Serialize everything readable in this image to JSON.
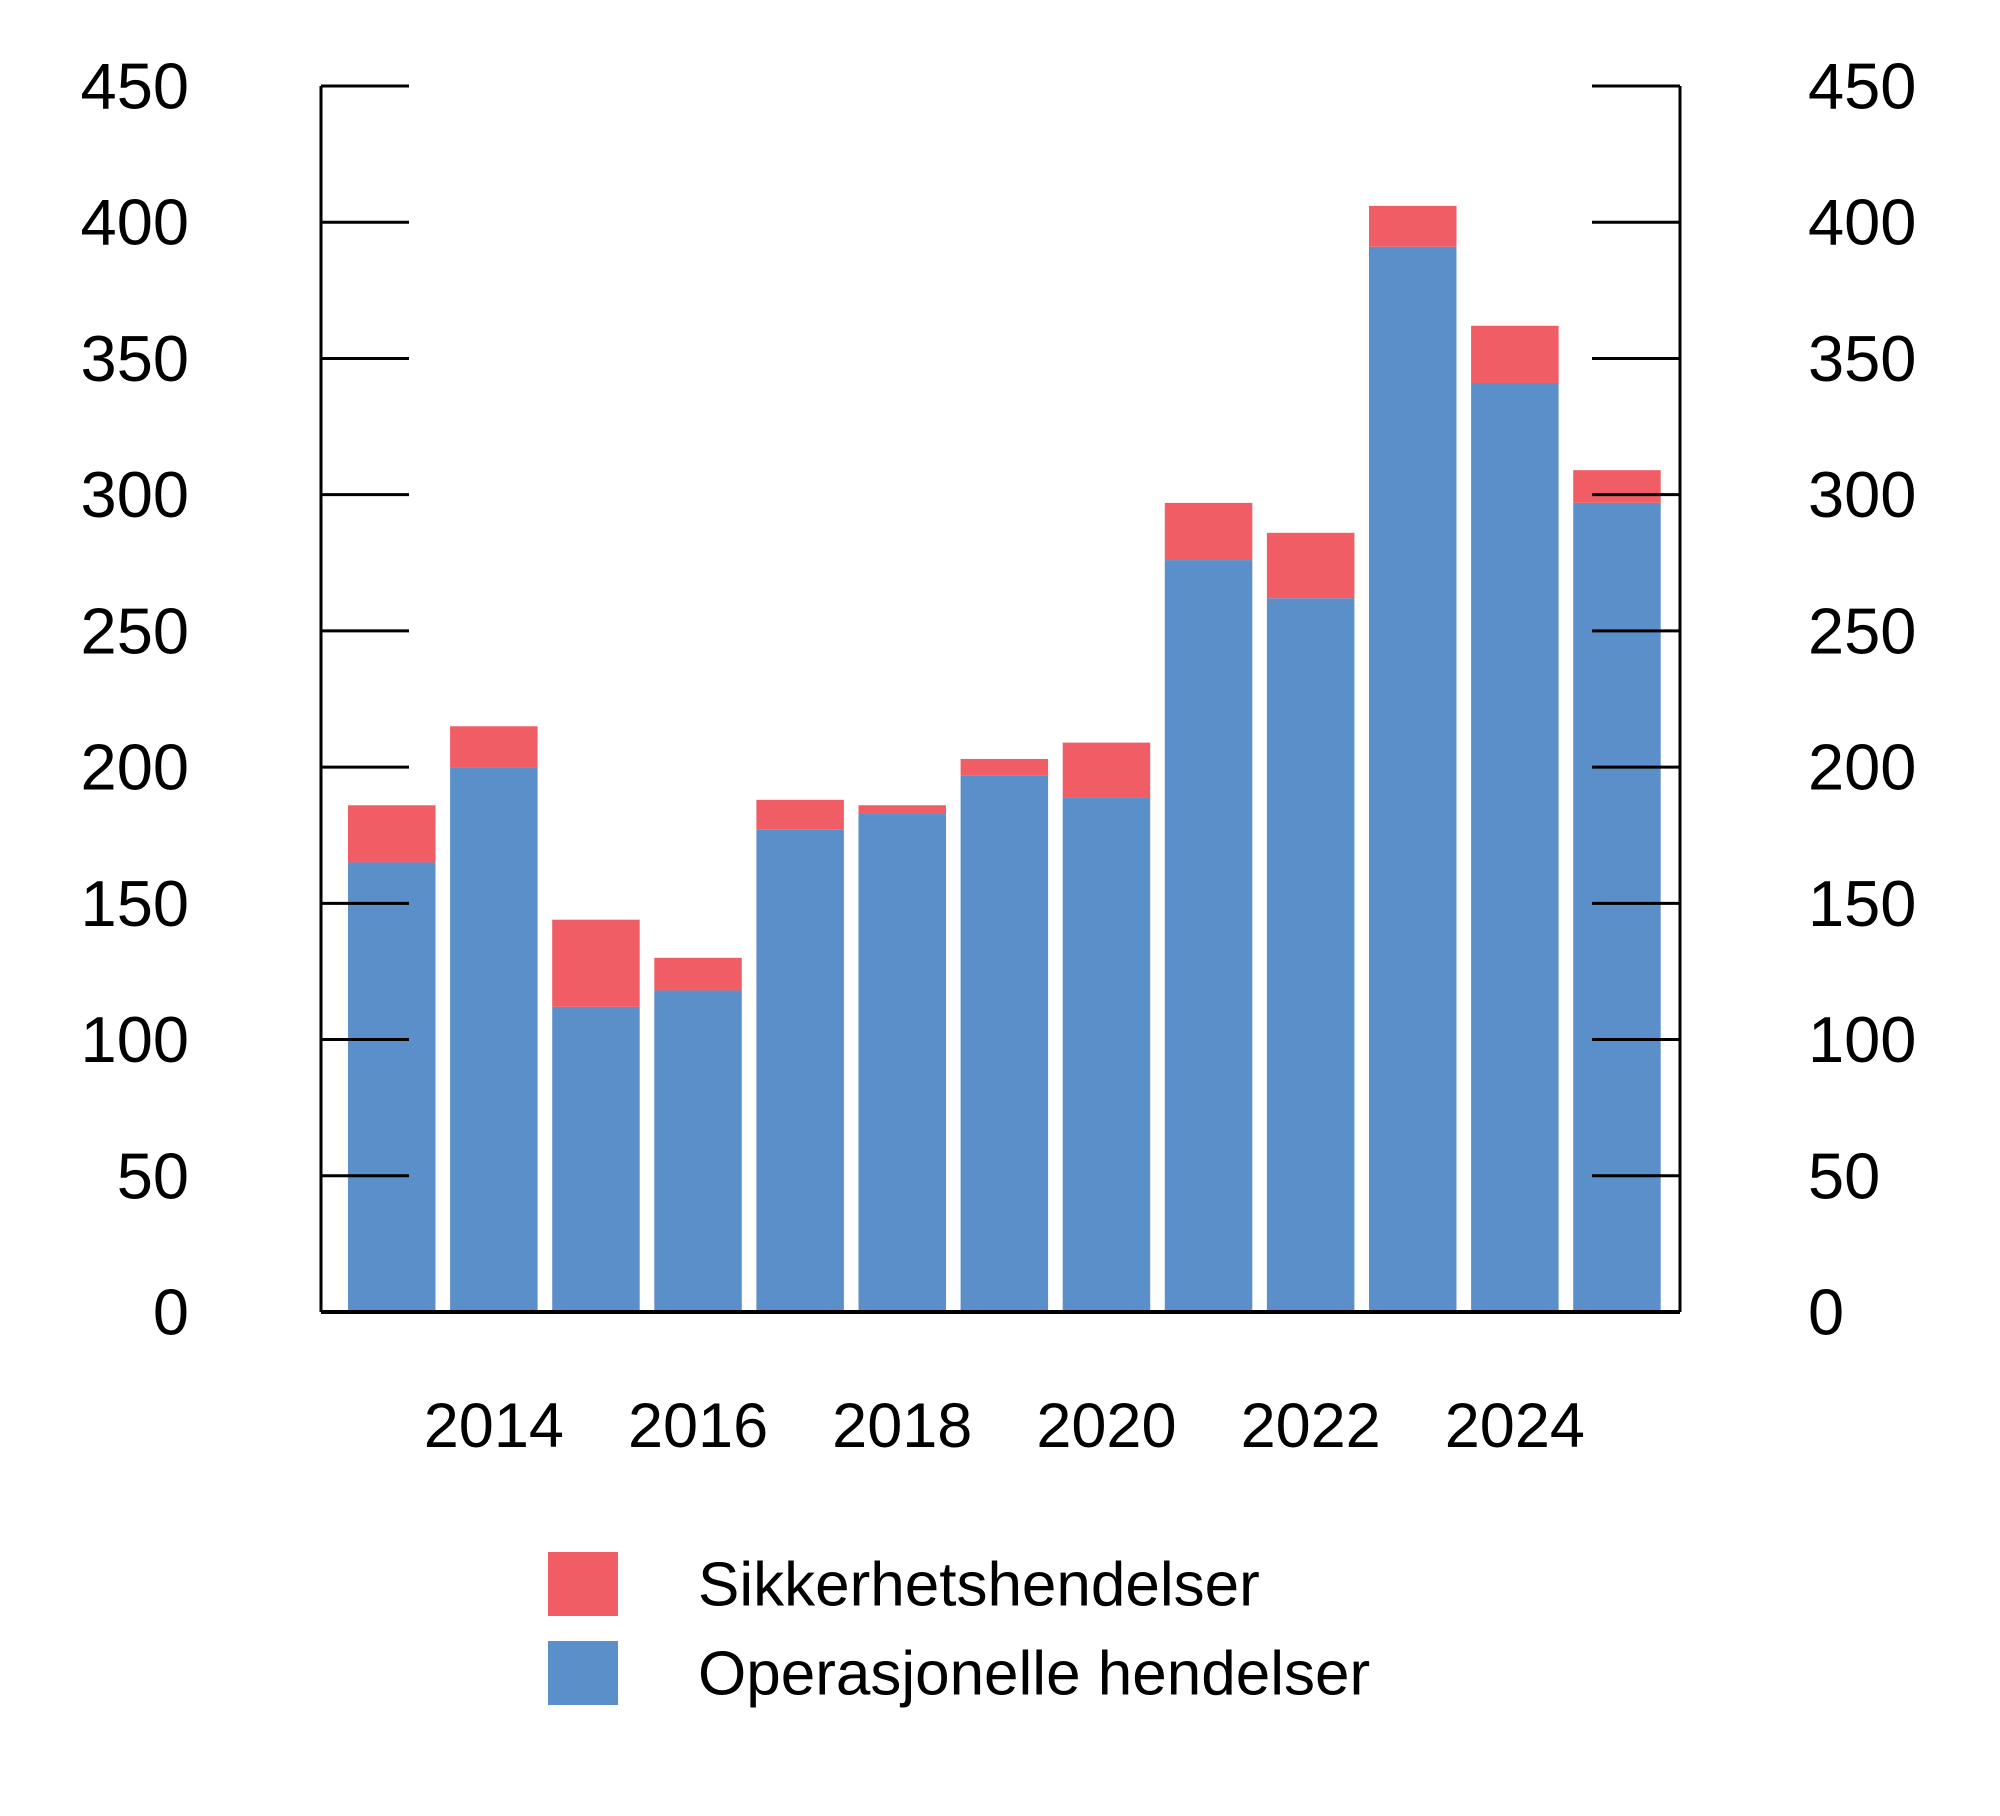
{
  "chart_data": {
    "type": "bar",
    "stacked": true,
    "orientation": "vertical",
    "title": "",
    "xlabel": "",
    "ylabel": "",
    "categories": [
      2013,
      2014,
      2015,
      2016,
      2017,
      2018,
      2019,
      2020,
      2021,
      2022,
      2023,
      2024,
      2025
    ],
    "series": [
      {
        "name": "Operasjonelle hendelser",
        "color": "#5b8fc9",
        "values": [
          165,
          200,
          112,
          118,
          177,
          183,
          197,
          189,
          276,
          262,
          391,
          341,
          297
        ]
      },
      {
        "name": "Sikkerhetshendelser",
        "color": "#f15d65",
        "values": [
          21,
          15,
          32,
          12,
          11,
          3,
          6,
          20,
          21,
          24,
          15,
          21,
          12
        ]
      }
    ],
    "stack_order_bottom_to_top": [
      "Operasjonelle hendelser",
      "Sikkerhetshendelser"
    ],
    "totals": [
      186,
      215,
      144,
      130,
      188,
      186,
      203,
      209,
      297,
      286,
      406,
      362,
      309
    ],
    "x_tick_labels": [
      "2014",
      "2016",
      "2018",
      "2020",
      "2022",
      "2024"
    ],
    "x_tick_category_indexes": [
      1,
      3,
      5,
      7,
      9,
      11
    ],
    "y_ticks": [
      0,
      50,
      100,
      150,
      200,
      250,
      300,
      350,
      400,
      450
    ],
    "y_tick_labels": [
      "0",
      "50",
      "100",
      "150",
      "200",
      "250",
      "300",
      "350",
      "400",
      "450"
    ],
    "ylim": [
      0,
      450
    ],
    "y_axis_sides": [
      "left",
      "right"
    ],
    "grid": false,
    "legend_position": "bottom-left",
    "legend": [
      {
        "label": "Sikkerhetshendelser",
        "color": "#f15d65"
      },
      {
        "label": "Operasjonelle hendelser",
        "color": "#5b8fc9"
      }
    ]
  },
  "styles": {
    "background": "#ffffff",
    "axis_color": "#000000",
    "text_color": "#000000"
  }
}
